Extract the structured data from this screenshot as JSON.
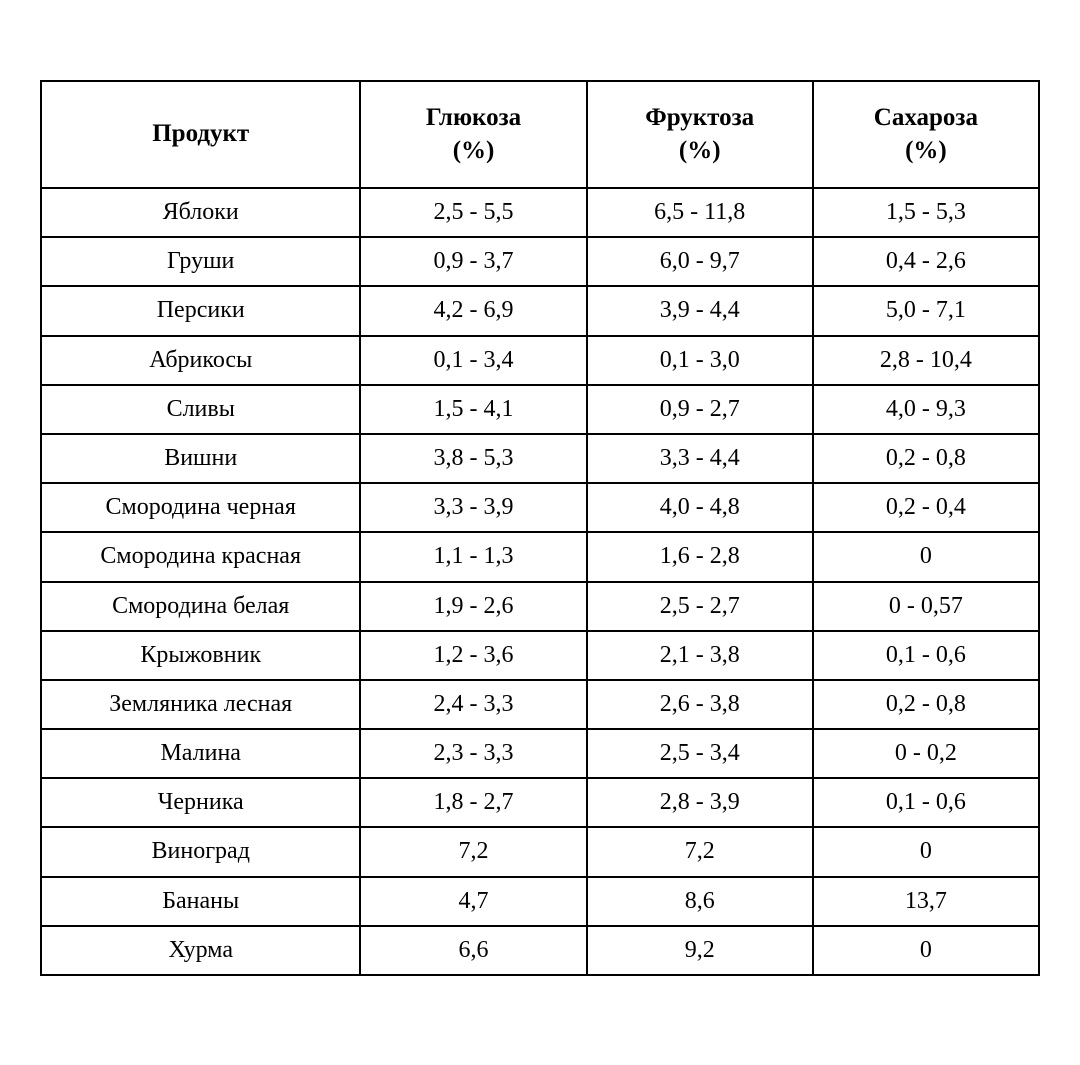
{
  "table": {
    "type": "table",
    "background_color": "#ffffff",
    "border_color": "#000000",
    "border_width": 2,
    "font_family": "Times New Roman",
    "header_fontsize": 25,
    "header_fontweight": "bold",
    "cell_fontsize": 24,
    "cell_alignment": "center",
    "columns": [
      {
        "label": "Продукт",
        "unit": "",
        "width": "32%"
      },
      {
        "label": "Глюкоза",
        "unit": "(%)",
        "width": "22.66%"
      },
      {
        "label": "Фруктоза",
        "unit": "(%)",
        "width": "22.66%"
      },
      {
        "label": "Сахароза",
        "unit": "(%)",
        "width": "22.66%"
      }
    ],
    "rows": [
      [
        "Яблоки",
        "2,5 - 5,5",
        "6,5 - 11,8",
        "1,5 - 5,3"
      ],
      [
        "Груши",
        "0,9 - 3,7",
        "6,0 - 9,7",
        "0,4 - 2,6"
      ],
      [
        "Персики",
        "4,2 - 6,9",
        "3,9 - 4,4",
        "5,0 - 7,1"
      ],
      [
        "Абрикосы",
        "0,1 - 3,4",
        "0,1 - 3,0",
        "2,8 - 10,4"
      ],
      [
        "Сливы",
        "1,5 - 4,1",
        "0,9 - 2,7",
        "4,0 - 9,3"
      ],
      [
        "Вишни",
        "3,8 - 5,3",
        "3,3 - 4,4",
        "0,2 - 0,8"
      ],
      [
        "Смородина черная",
        "3,3 - 3,9",
        "4,0 - 4,8",
        "0,2 - 0,4"
      ],
      [
        "Смородина красная",
        "1,1 - 1,3",
        "1,6 - 2,8",
        "0"
      ],
      [
        "Смородина белая",
        "1,9 - 2,6",
        "2,5 - 2,7",
        "0 - 0,57"
      ],
      [
        "Крыжовник",
        "1,2 - 3,6",
        "2,1 - 3,8",
        "0,1 - 0,6"
      ],
      [
        "Земляника лесная",
        "2,4 - 3,3",
        "2,6 - 3,8",
        "0,2 - 0,8"
      ],
      [
        "Малина",
        "2,3 - 3,3",
        "2,5 - 3,4",
        "0 - 0,2"
      ],
      [
        "Черника",
        "1,8 - 2,7",
        "2,8 - 3,9",
        "0,1 - 0,6"
      ],
      [
        "Виноград",
        "7,2",
        "7,2",
        "0"
      ],
      [
        "Бананы",
        "4,7",
        "8,6",
        "13,7"
      ],
      [
        "Хурма",
        "6,6",
        "9,2",
        "0"
      ]
    ]
  }
}
